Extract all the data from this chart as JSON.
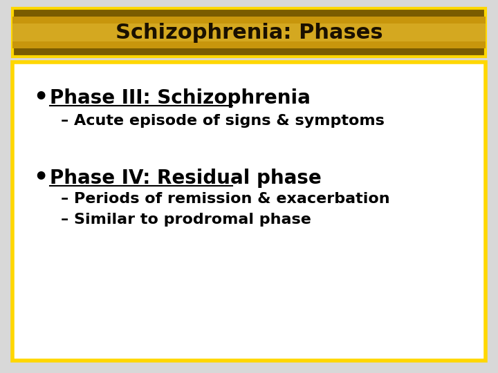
{
  "title": "Schizophrenia: Phases",
  "title_text_color": "#1a1000",
  "title_border_color": "#FFD700",
  "title_bg_dark": "#7a5c00",
  "title_bg_mid": "#C8960C",
  "title_bg_light": "#D4A820",
  "content_bg_color": "#ffffff",
  "content_border_color": "#FFD700",
  "outer_bg_color": "#d8d8d8",
  "bullet1_heading": "Phase III: Schizophrenia",
  "bullet1_sub": [
    "– Acute episode of signs & symptoms"
  ],
  "bullet2_heading": "Phase IV: Residual phase",
  "bullet2_sub": [
    "– Periods of remission & exacerbation",
    "– Similar to prodromal phase"
  ],
  "text_color": "#000000",
  "heading_fontsize": 20,
  "sub_fontsize": 16,
  "title_fontsize": 22
}
